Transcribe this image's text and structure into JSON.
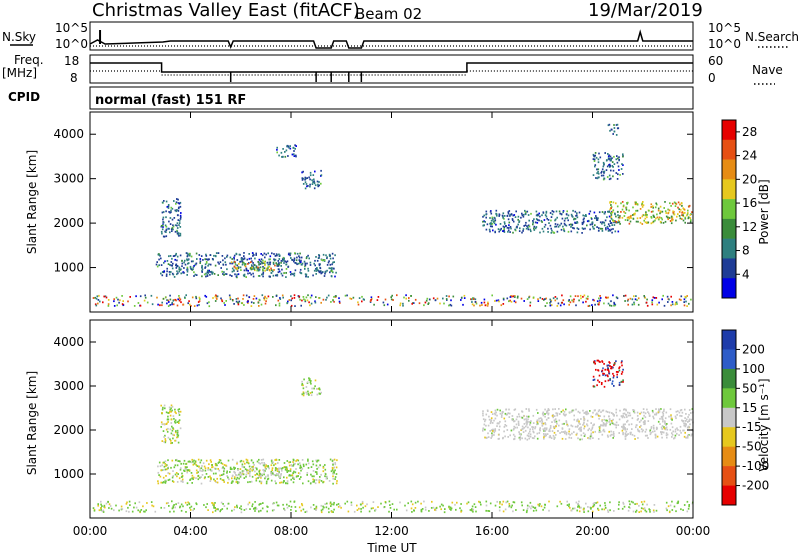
{
  "header": {
    "title": "Christmas Valley East (fitACF)",
    "beam": "Beam 02",
    "date": "19/Mar/2019"
  },
  "status_panels": {
    "nsky_label": "N.Sky",
    "nsky_ticks": [
      "10^5",
      "10^0"
    ],
    "nsearch_label": "N.Search",
    "nsearch_ticks": [
      "10^5",
      "10^0"
    ],
    "freq_label": "Freq.",
    "freq_unit": "[MHz]",
    "freq_ticks": [
      "18",
      "8"
    ],
    "nave_label": "Nave",
    "nave_ticks": [
      "60",
      "0"
    ],
    "cpid_label": "CPID",
    "cpid_value": "normal (fast) 151 RF"
  },
  "colors": {
    "power": [
      "#0000e6",
      "#1e3c96",
      "#2e7f7f",
      "#3a8c3a",
      "#6ec83c",
      "#e6c81e",
      "#e68c14",
      "#e65014",
      "#e60000"
    ],
    "velocity": [
      "#1e3caa",
      "#2e5cc8",
      "#3a8c3a",
      "#6ec83c",
      "#c8c8c8",
      "#e6c81e",
      "#e68c14",
      "#e65014",
      "#e60000"
    ],
    "grey": "#b4b4b4"
  },
  "chart_data": [
    {
      "type": "heatmap",
      "name": "power",
      "ylabel": "Slant Range [km]",
      "xlabel": "",
      "ylim": [
        0,
        4500
      ],
      "xlim_hours": [
        0,
        24
      ],
      "yticks": [
        1000,
        2000,
        3000,
        4000
      ],
      "xticks_hours": [
        0,
        4,
        8,
        12,
        16,
        20,
        24
      ],
      "colorbar_label": "Power [dB]",
      "colorbar_ticks": [
        "4",
        "8",
        "12",
        "16",
        "20",
        "24",
        "28"
      ],
      "colorbar_range": [
        0,
        30
      ],
      "regions": [
        {
          "t": [
            2.6,
            9.8
          ],
          "r": [
            800,
            1350
          ],
          "v": "mid",
          "note": "main E-region band"
        },
        {
          "t": [
            5.6,
            7.6
          ],
          "r": [
            950,
            1150
          ],
          "v": "strong"
        },
        {
          "t": [
            2.8,
            3.6
          ],
          "r": [
            1700,
            2600
          ],
          "v": "mid"
        },
        {
          "t": [
            7.4,
            8.2
          ],
          "r": [
            3500,
            3800
          ],
          "v": "mid"
        },
        {
          "t": [
            8.4,
            9.2
          ],
          "r": [
            2800,
            3200
          ],
          "v": "mid"
        },
        {
          "t": [
            15.6,
            21.0
          ],
          "r": [
            1800,
            2300
          ],
          "v": "mid"
        },
        {
          "t": [
            20.6,
            24.0
          ],
          "r": [
            2000,
            2500
          ],
          "v": "strong"
        },
        {
          "t": [
            20.0,
            21.2
          ],
          "r": [
            3000,
            3600
          ],
          "v": "mid"
        },
        {
          "t": [
            20.6,
            21.0
          ],
          "r": [
            4000,
            4300
          ],
          "v": "mid"
        },
        {
          "t": [
            0.0,
            24.0
          ],
          "r": [
            150,
            400
          ],
          "v": "ground"
        }
      ]
    },
    {
      "type": "heatmap",
      "name": "velocity",
      "ylabel": "Slant Range [km]",
      "xlabel": "Time UT",
      "ylim": [
        0,
        4500
      ],
      "xlim_hours": [
        0,
        24
      ],
      "yticks": [
        1000,
        2000,
        3000,
        4000
      ],
      "xticks_hours": [
        0,
        4,
        8,
        12,
        16,
        20,
        24
      ],
      "xtick_labels": [
        "00:00",
        "04:00",
        "08:00",
        "12:00",
        "16:00",
        "20:00",
        "00:00"
      ],
      "colorbar_label": "Velocity [m s⁻¹]",
      "colorbar_ticks": [
        "200",
        "100",
        "50",
        "15",
        "-15",
        "-50",
        "-100",
        "-200"
      ],
      "regions": [
        {
          "t": [
            2.6,
            9.8
          ],
          "r": [
            800,
            1350
          ],
          "v": "mixed"
        },
        {
          "t": [
            5.6,
            7.6
          ],
          "r": [
            950,
            1150
          ],
          "v": "grey"
        },
        {
          "t": [
            2.8,
            3.6
          ],
          "r": [
            1700,
            2600
          ],
          "v": "mixed"
        },
        {
          "t": [
            8.4,
            9.2
          ],
          "r": [
            2800,
            3200
          ],
          "v": "mixed"
        },
        {
          "t": [
            15.6,
            24.0
          ],
          "r": [
            1800,
            2500
          ],
          "v": "grey"
        },
        {
          "t": [
            20.0,
            21.2
          ],
          "r": [
            3000,
            3600
          ],
          "v": "red"
        },
        {
          "t": [
            0.0,
            24.0
          ],
          "r": [
            150,
            400
          ],
          "v": "ground"
        }
      ]
    }
  ]
}
